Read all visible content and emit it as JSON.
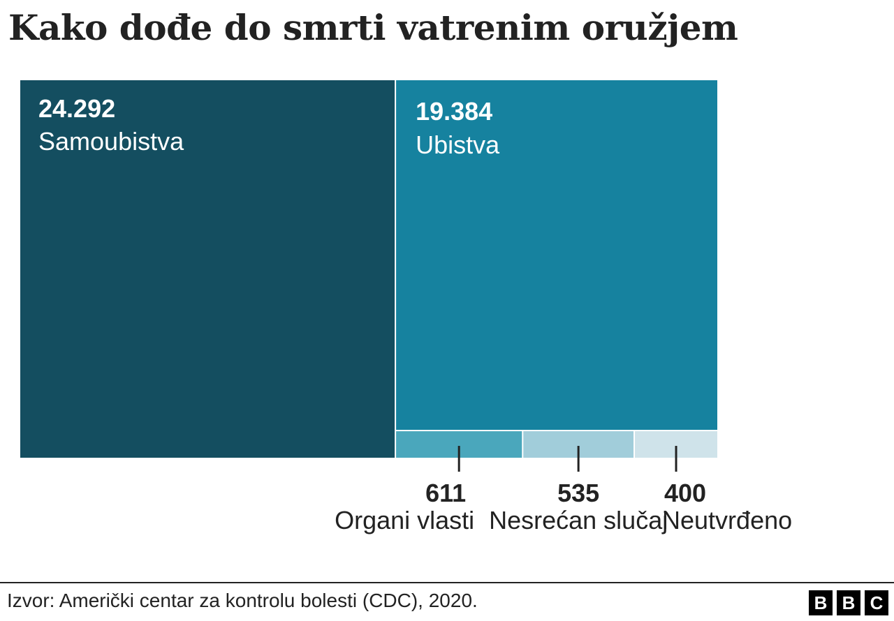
{
  "title": "Kako dođe do smrti vatrenim oružjem",
  "source": "Izvor: Američki centar za kontrolu bolesti (CDC), 2020.",
  "logo": [
    "B",
    "B",
    "C"
  ],
  "chart_data": {
    "type": "treemap",
    "title": "Kako dođe do smrti vatrenim oružjem",
    "items": [
      {
        "label": "Samoubistva",
        "value": 24292,
        "value_label": "24.292",
        "color": "#144e60"
      },
      {
        "label": "Ubistva",
        "value": 19384,
        "value_label": "19.384",
        "color": "#16829f"
      },
      {
        "label": "Organi vlasti",
        "value": 611,
        "value_label": "611",
        "color": "#4aa7bc"
      },
      {
        "label": "Nesrećan slučaj",
        "value": 535,
        "value_label": "535",
        "color": "#a1cdda"
      },
      {
        "label": "Neutvrđeno",
        "value": 400,
        "value_label": "400",
        "color": "#cfe3ea"
      }
    ]
  }
}
